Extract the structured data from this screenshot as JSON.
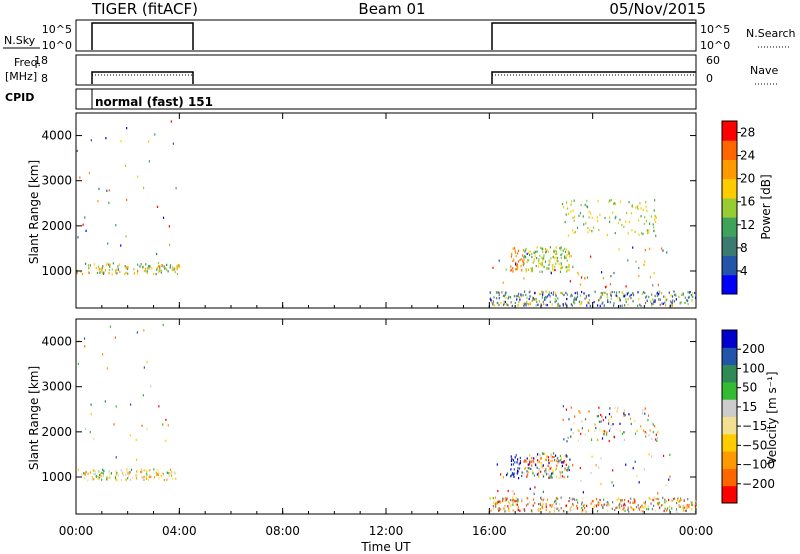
{
  "header": {
    "title": "TIGER (fitACF)",
    "beam": "Beam 01",
    "date": "05/Nov/2015"
  },
  "panels": {
    "nsky": {
      "label": "N.Sky",
      "ticks": [
        "10^5",
        "10^0"
      ],
      "right_ticks": [
        "10^5",
        "10^0"
      ],
      "right_label": "N.Search"
    },
    "freq": {
      "label": "Freq.",
      "unit": "[MHz]",
      "ticks": [
        "18",
        "8"
      ],
      "right_ticks": [
        "60",
        "0"
      ],
      "right_label": "Nave"
    },
    "cpid": {
      "label": "CPID",
      "text": "normal (fast) 151"
    }
  },
  "colors": {
    "power": [
      "#0000ff",
      "#2255aa",
      "#3a7a70",
      "#3ea25a",
      "#98cc33",
      "#ffcc00",
      "#ff9900",
      "#ff6600",
      "#ff0000"
    ],
    "velocity": [
      "#ff0000",
      "#ff6600",
      "#ff9900",
      "#ffcc00",
      "#f0e090",
      "#cccccc",
      "#33bb33",
      "#2f8a55",
      "#2255aa",
      "#0000cc"
    ],
    "ground": "#777777"
  },
  "chart_data": [
    {
      "type": "heatmap",
      "parameter": "power",
      "ylabel": "Slant Range [km]",
      "yticks": [
        "1000",
        "2000",
        "3000",
        "4000"
      ],
      "ylim": [
        180,
        4500
      ],
      "xlim_hours": [
        0,
        24
      ],
      "data_intervals_ut": [
        [
          "00:00",
          "04:00"
        ],
        [
          "16:00",
          "24:00"
        ]
      ],
      "colorbar": {
        "label": "Power [dB]",
        "ticks": [
          "4",
          "8",
          "12",
          "16",
          "20",
          "24",
          "28"
        ],
        "range": [
          0,
          30
        ]
      }
    },
    {
      "type": "heatmap",
      "parameter": "velocity",
      "ylabel": "Slant Range [km]",
      "yticks": [
        "1000",
        "2000",
        "3000",
        "4000"
      ],
      "ylim": [
        180,
        4500
      ],
      "xlim_hours": [
        0,
        24
      ],
      "data_intervals_ut": [
        [
          "00:00",
          "04:00"
        ],
        [
          "16:00",
          "24:00"
        ]
      ],
      "colorbar": {
        "label": "Velocity [m s⁻¹]",
        "ticks": [
          "200",
          "100",
          "50",
          "15",
          "−15",
          "−50",
          "−100",
          "−200"
        ]
      }
    }
  ],
  "time_axis": {
    "label": "Time UT",
    "ticks": [
      "00:00",
      "04:00",
      "08:00",
      "12:00",
      "16:00",
      "20:00",
      "00:00"
    ]
  }
}
